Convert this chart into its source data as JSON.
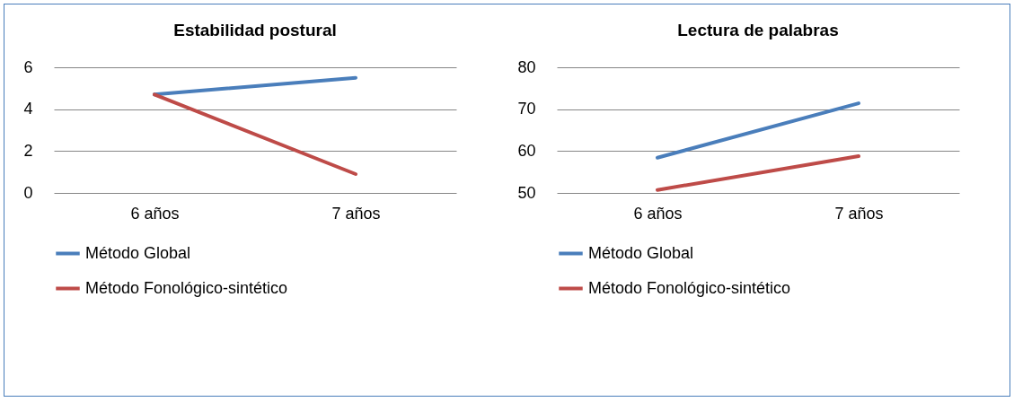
{
  "chart_data": [
    {
      "type": "line",
      "title": "Estabilidad postural",
      "categories": [
        "6 años",
        "7 años"
      ],
      "series": [
        {
          "name": "Método Global",
          "color": "#4a7ebb",
          "values": [
            4.7,
            5.5
          ]
        },
        {
          "name": "Método Fonológico-sintético",
          "color": "#be4b48",
          "values": [
            4.7,
            0.9
          ]
        }
      ],
      "ylim": [
        0,
        6
      ],
      "yticks": [
        0,
        2,
        4,
        6
      ],
      "grid": "y",
      "legend": "bottom",
      "marker": "none",
      "line_style": "solid"
    },
    {
      "type": "line",
      "title": "Lectura de palabras",
      "categories": [
        "6 años",
        "7 años"
      ],
      "series": [
        {
          "name": "Método Global",
          "color": "#4a7ebb",
          "values": [
            58.4,
            71.4
          ]
        },
        {
          "name": "Método Fonológico-sintético",
          "color": "#be4b48",
          "values": [
            50.7,
            58.8
          ]
        }
      ],
      "ylim": [
        50,
        80
      ],
      "yticks": [
        50,
        60,
        70,
        80
      ],
      "grid": "y",
      "legend": "bottom",
      "marker": "none",
      "line_style": "solid"
    }
  ]
}
